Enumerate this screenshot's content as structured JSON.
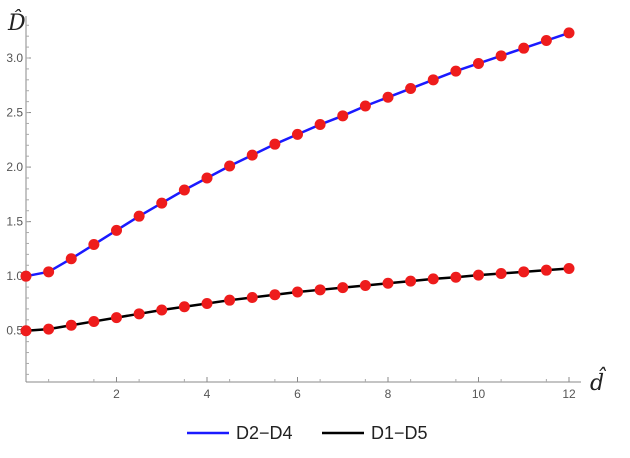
{
  "chart_data": {
    "type": "line",
    "xlabel": "d̂",
    "ylabel": "D̂",
    "xlim": [
      0,
      12
    ],
    "ylim": [
      0.03,
      3.33
    ],
    "xticks": [
      2,
      4,
      6,
      8,
      10,
      12
    ],
    "yticks": [
      0.5,
      1.0,
      1.5,
      2.0,
      2.5,
      3.0
    ],
    "xtick_labels": [
      "2",
      "4",
      "6",
      "8",
      "10",
      "12"
    ],
    "ytick_labels": [
      "0.5",
      "1.0",
      "1.5",
      "2.0",
      "2.5",
      "3.0"
    ],
    "legend_position": "bottom-center",
    "grid": false,
    "series": [
      {
        "name": "D2−D4",
        "color": "#1a1aff",
        "x": [
          0,
          0.5,
          1,
          1.5,
          2,
          2.5,
          3,
          3.5,
          4,
          4.5,
          5,
          5.5,
          6,
          6.5,
          7,
          7.5,
          8,
          8.5,
          9,
          9.5,
          10,
          10.5,
          11,
          11.5,
          12
        ],
        "y": [
          1.0,
          1.04,
          1.16,
          1.29,
          1.42,
          1.55,
          1.67,
          1.79,
          1.9,
          2.01,
          2.11,
          2.21,
          2.3,
          2.39,
          2.47,
          2.56,
          2.64,
          2.72,
          2.8,
          2.88,
          2.95,
          3.02,
          3.09,
          3.16,
          3.23
        ]
      },
      {
        "name": "D1−D5",
        "color": "#000000",
        "x": [
          0,
          0.5,
          1,
          1.5,
          2,
          2.5,
          3,
          3.5,
          4,
          4.5,
          5,
          5.5,
          6,
          6.5,
          7,
          7.5,
          8,
          8.5,
          9,
          9.5,
          10,
          10.5,
          11,
          11.5,
          12
        ],
        "y": [
          0.5,
          0.515,
          0.55,
          0.585,
          0.62,
          0.655,
          0.69,
          0.72,
          0.75,
          0.78,
          0.805,
          0.83,
          0.855,
          0.875,
          0.895,
          0.915,
          0.935,
          0.955,
          0.975,
          0.99,
          1.01,
          1.025,
          1.04,
          1.055,
          1.07
        ]
      }
    ],
    "marker_color": "#ee1c1c"
  }
}
